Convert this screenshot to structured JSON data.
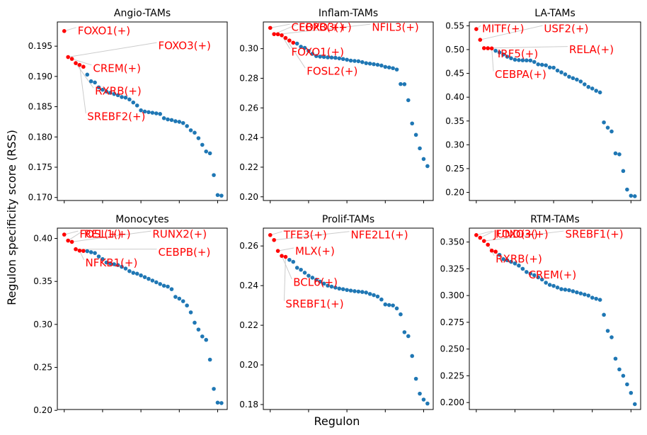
{
  "figure": {
    "ylabel": "Regulon specificity score (RSS)",
    "xlabel": "Regulon",
    "colors": {
      "point": "#1f77b4",
      "highlight": "#ff0000",
      "leader": "#cccccc",
      "axis": "#000000"
    }
  },
  "chart_data": [
    {
      "type": "scatter",
      "title": "Angio-TAMs",
      "ylim": [
        0.1695,
        0.199
      ],
      "yticks": [
        0.17,
        0.175,
        0.18,
        0.185,
        0.19,
        0.195
      ],
      "ytick_labels": [
        "0.170",
        "0.175",
        "0.180",
        "0.185",
        "0.190",
        "0.195"
      ],
      "xticks": [
        0,
        10,
        20,
        30,
        40
      ],
      "n_points": 42,
      "highlight_count": 6,
      "values": [
        0.1975,
        0.1932,
        0.1929,
        0.1922,
        0.1919,
        0.1916,
        0.1903,
        0.1892,
        0.189,
        0.1882,
        0.1878,
        0.1875,
        0.1873,
        0.1871,
        0.1869,
        0.1866,
        0.1865,
        0.1862,
        0.1857,
        0.1852,
        0.1844,
        0.1842,
        0.1841,
        0.184,
        0.1839,
        0.1838,
        0.1831,
        0.1829,
        0.1828,
        0.1826,
        0.1825,
        0.1823,
        0.1818,
        0.1811,
        0.1807,
        0.1798,
        0.1787,
        0.1776,
        0.1773,
        0.1737,
        0.1704,
        0.1703
      ],
      "labels": [
        {
          "text": "FOXO1(+)",
          "point": 0,
          "lx": 3.5,
          "ly": 0.1975
        },
        {
          "text": "FOXO3(+)",
          "point": 1,
          "lx": 24.5,
          "ly": 0.195
        },
        {
          "text": "CREM(+)",
          "point": 2,
          "lx": 7.5,
          "ly": 0.1913
        },
        {
          "text": "RXRB(+)",
          "point": 3,
          "lx": 8.0,
          "ly": 0.1875
        },
        {
          "text": "SREBF2(+)",
          "point": 4,
          "lx": 6.0,
          "ly": 0.1833
        },
        {
          "text": "",
          "point": 5,
          "lx": 0,
          "ly": 0
        }
      ]
    },
    {
      "type": "scatter",
      "title": "Inflam-TAMs",
      "ylim": [
        0.1975,
        0.318
      ],
      "yticks": [
        0.2,
        0.22,
        0.24,
        0.26,
        0.28,
        0.3
      ],
      "ytick_labels": [
        "0.20",
        "0.22",
        "0.24",
        "0.26",
        "0.28",
        "0.30"
      ],
      "xticks": [
        0,
        10,
        20,
        30,
        40
      ],
      "n_points": 42,
      "highlight_count": 7,
      "values": [
        0.314,
        0.3098,
        0.3097,
        0.309,
        0.3072,
        0.3055,
        0.304,
        0.3034,
        0.3013,
        0.3005,
        0.2985,
        0.2965,
        0.295,
        0.2946,
        0.2944,
        0.2941,
        0.294,
        0.2938,
        0.2934,
        0.293,
        0.2925,
        0.2919,
        0.2917,
        0.2915,
        0.2909,
        0.2902,
        0.2899,
        0.2895,
        0.2891,
        0.2886,
        0.2877,
        0.2873,
        0.2868,
        0.2859,
        0.2761,
        0.276,
        0.2652,
        0.2495,
        0.2418,
        0.2327,
        0.2255,
        0.2207
      ],
      "labels": [
        {
          "text": "CEBPB(+)",
          "point": 0,
          "lx": 5.5,
          "ly": 0.3141
        },
        {
          "text": "FOXO3(+)",
          "point": 1,
          "lx": 7.5,
          "ly": 0.3141
        },
        {
          "text": "NFIL3(+)",
          "point": 2,
          "lx": 26.5,
          "ly": 0.3141
        },
        {
          "text": "FOXO1(+)",
          "point": 3,
          "lx": 5.5,
          "ly": 0.2975
        },
        {
          "text": "FOSL2(+)",
          "point": 4,
          "lx": 9.5,
          "ly": 0.2845
        },
        {
          "text": "",
          "point": 5,
          "lx": 0,
          "ly": 0
        },
        {
          "text": "",
          "point": 6,
          "lx": 0,
          "ly": 0
        }
      ]
    },
    {
      "type": "scatter",
      "title": "LA-TAMs",
      "ylim": [
        0.183,
        0.558
      ],
      "yticks": [
        0.2,
        0.25,
        0.3,
        0.35,
        0.4,
        0.45,
        0.5,
        0.55
      ],
      "ytick_labels": [
        "0.20",
        "0.25",
        "0.30",
        "0.35",
        "0.40",
        "0.45",
        "0.50",
        "0.55"
      ],
      "xticks": [
        0,
        10,
        20,
        30,
        40
      ],
      "n_points": 42,
      "highlight_count": 5,
      "values": [
        0.543,
        0.5205,
        0.503,
        0.5028,
        0.5025,
        0.4975,
        0.494,
        0.4897,
        0.485,
        0.4818,
        0.4788,
        0.4779,
        0.4775,
        0.4773,
        0.4771,
        0.474,
        0.469,
        0.468,
        0.467,
        0.4625,
        0.462,
        0.456,
        0.4522,
        0.448,
        0.443,
        0.44,
        0.437,
        0.433,
        0.427,
        0.4215,
        0.4182,
        0.4135,
        0.41,
        0.347,
        0.336,
        0.328,
        0.282,
        0.28,
        0.245,
        0.206,
        0.193,
        0.192
      ],
      "labels": [
        {
          "text": "MITF(+)",
          "point": 0,
          "lx": 1.5,
          "ly": 0.543
        },
        {
          "text": "USF2(+)",
          "point": 1,
          "lx": 17.5,
          "ly": 0.543
        },
        {
          "text": "RELA(+)",
          "point": 2,
          "lx": 24.0,
          "ly": 0.499
        },
        {
          "text": "IRF5(+)",
          "point": 3,
          "lx": 5.5,
          "ly": 0.49
        },
        {
          "text": "CEBPA(+)",
          "point": 4,
          "lx": 4.8,
          "ly": 0.447
        }
      ]
    },
    {
      "type": "scatter",
      "title": "Monocytes",
      "ylim": [
        0.201,
        0.412
      ],
      "yticks": [
        0.2,
        0.25,
        0.3,
        0.35,
        0.4
      ],
      "ytick_labels": [
        "0.20",
        "0.25",
        "0.30",
        "0.35",
        "0.40"
      ],
      "xticks": [
        0,
        10,
        20,
        30,
        40
      ],
      "n_points": 42,
      "highlight_count": 6,
      "values": [
        0.4045,
        0.3975,
        0.396,
        0.3875,
        0.3858,
        0.3855,
        0.3852,
        0.384,
        0.383,
        0.379,
        0.376,
        0.372,
        0.371,
        0.37,
        0.369,
        0.367,
        0.365,
        0.362,
        0.36,
        0.359,
        0.357,
        0.355,
        0.353,
        0.351,
        0.349,
        0.347,
        0.345,
        0.344,
        0.341,
        0.332,
        0.33,
        0.327,
        0.322,
        0.314,
        0.302,
        0.294,
        0.286,
        0.282,
        0.259,
        0.225,
        0.209,
        0.2085
      ],
      "labels": [
        {
          "text": "FOSL1(+)",
          "point": 0,
          "lx": 4.0,
          "ly": 0.4045
        },
        {
          "text": "REL(+)",
          "point": 1,
          "lx": 5.2,
          "ly": 0.4045
        },
        {
          "text": "RUNX2(+)",
          "point": 2,
          "lx": 23.0,
          "ly": 0.4045
        },
        {
          "text": "CEBPB(+)",
          "point": 3,
          "lx": 24.5,
          "ly": 0.3835
        },
        {
          "text": "NFKB1(+)",
          "point": 4,
          "lx": 5.5,
          "ly": 0.371
        },
        {
          "text": "",
          "point": 5,
          "lx": 0,
          "ly": 0
        }
      ]
    },
    {
      "type": "scatter",
      "title": "Prolif-TAMs",
      "ylim": [
        0.1775,
        0.269
      ],
      "yticks": [
        0.18,
        0.2,
        0.22,
        0.24,
        0.26
      ],
      "ytick_labels": [
        "0.18",
        "0.20",
        "0.22",
        "0.24",
        "0.26"
      ],
      "xticks": [
        0,
        10,
        20,
        30,
        40
      ],
      "n_points": 42,
      "highlight_count": 5,
      "values": [
        0.2655,
        0.263,
        0.2575,
        0.255,
        0.2545,
        0.253,
        0.252,
        0.249,
        0.248,
        0.2465,
        0.245,
        0.244,
        0.243,
        0.242,
        0.241,
        0.24,
        0.2395,
        0.239,
        0.2385,
        0.2382,
        0.2378,
        0.2375,
        0.2372,
        0.237,
        0.2368,
        0.2365,
        0.2358,
        0.2352,
        0.2345,
        0.233,
        0.2305,
        0.2302,
        0.23,
        0.2285,
        0.2255,
        0.2165,
        0.2145,
        0.2045,
        0.193,
        0.1855,
        0.1825,
        0.1805
      ],
      "labels": [
        {
          "text": "TFE3(+)",
          "point": 0,
          "lx": 3.5,
          "ly": 0.2655
        },
        {
          "text": "NFE2L1(+)",
          "point": 1,
          "lx": 21.0,
          "ly": 0.2655
        },
        {
          "text": "MLX(+)",
          "point": 2,
          "lx": 6.5,
          "ly": 0.2572
        },
        {
          "text": "BCL6(+)",
          "point": 3,
          "lx": 6.0,
          "ly": 0.2415
        },
        {
          "text": "SREBF1(+)",
          "point": 4,
          "lx": 4.0,
          "ly": 0.2305
        }
      ]
    },
    {
      "type": "scatter",
      "title": "RTM-TAMs",
      "ylim": [
        0.1935,
        0.363
      ],
      "yticks": [
        0.2,
        0.225,
        0.25,
        0.275,
        0.3,
        0.325,
        0.35
      ],
      "ytick_labels": [
        "0.200",
        "0.225",
        "0.250",
        "0.275",
        "0.300",
        "0.325",
        "0.350"
      ],
      "xticks": [
        0,
        10,
        20,
        30,
        40
      ],
      "n_points": 42,
      "highlight_count": 6,
      "values": [
        0.3565,
        0.354,
        0.351,
        0.3475,
        0.342,
        0.341,
        0.338,
        0.334,
        0.333,
        0.3315,
        0.33,
        0.328,
        0.325,
        0.322,
        0.3205,
        0.319,
        0.317,
        0.315,
        0.312,
        0.31,
        0.309,
        0.3075,
        0.306,
        0.3055,
        0.305,
        0.304,
        0.303,
        0.302,
        0.301,
        0.3,
        0.298,
        0.297,
        0.296,
        0.282,
        0.267,
        0.261,
        0.241,
        0.231,
        0.225,
        0.217,
        0.209,
        0.1985
      ],
      "labels": [
        {
          "text": "JUND(+)",
          "point": 0,
          "lx": 4.5,
          "ly": 0.357
        },
        {
          "text": "FOXO3(+)",
          "point": 1,
          "lx": 5.0,
          "ly": 0.357
        },
        {
          "text": "SREBF1(+)",
          "point": 2,
          "lx": 23.0,
          "ly": 0.357
        },
        {
          "text": "RXRB(+)",
          "point": 3,
          "lx": 5.0,
          "ly": 0.334
        },
        {
          "text": "CREM(+)",
          "point": 4,
          "lx": 13.5,
          "ly": 0.319
        },
        {
          "text": "",
          "point": 5,
          "lx": 0,
          "ly": 0
        }
      ]
    }
  ]
}
